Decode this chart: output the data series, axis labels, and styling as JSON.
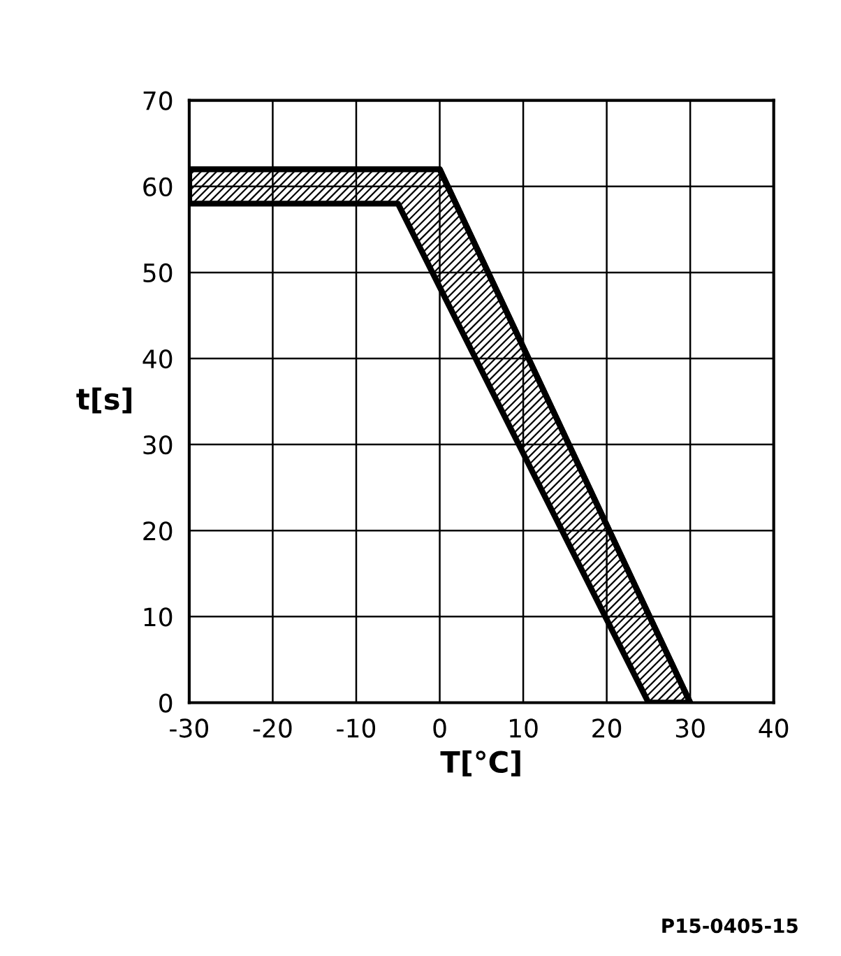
{
  "chart_data": {
    "type": "line",
    "xlabel": "T[°C]",
    "ylabel": "t[s]",
    "series": [
      {
        "color": "#000000",
        "x": [
          -30,
          -5,
          0,
          25,
          30
        ],
        "values": [
          62,
          62,
          62,
          10.3,
          0
        ],
        "upper": [
          62,
          62,
          62,
          10.3,
          0
        ],
        "lower": [
          58,
          58,
          48.3,
          0,
          0
        ]
      }
    ],
    "xlim": [
      -30,
      40
    ],
    "xticks": [
      -30,
      -20,
      -10,
      0,
      10,
      20,
      30,
      40
    ],
    "ylim": [
      0,
      70
    ],
    "yticks": [
      0,
      10,
      20,
      30,
      40,
      50,
      60,
      70
    ],
    "grid": true,
    "annotations": [
      "P15-0405-15"
    ]
  }
}
